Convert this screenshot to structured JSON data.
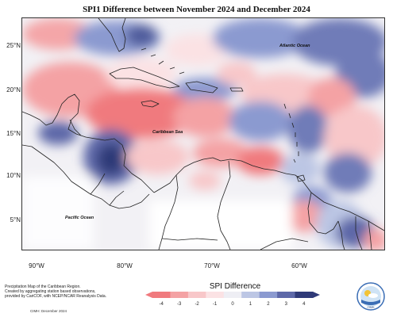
{
  "title": "SPI1 Difference between November 2024 and December 2024",
  "map": {
    "labels": {
      "atlantic": "Atlantic Ocean",
      "caribbean": "Caribbean Sea",
      "pacific": "Pacific Ocean"
    },
    "lat_ticks": [
      "25°N",
      "20°N",
      "15°N",
      "10°N",
      "5°N"
    ],
    "lon_ticks": [
      "90°W",
      "80°W",
      "70°W",
      "60°W"
    ]
  },
  "colorbar": {
    "title": "SPI Difference",
    "ticks": [
      "-4",
      "-3",
      "-2",
      "-1",
      "0",
      "1",
      "2",
      "3",
      "4"
    ],
    "colors": [
      "#f07a7e",
      "#f4a2a4",
      "#f8c7c9",
      "#fbe2e4",
      "#eeeef4",
      "#bcc6e4",
      "#8b9ad0",
      "#5d68a8",
      "#2f3a78"
    ]
  },
  "credits": {
    "line1": "Precipitation Map of the Caribbean Region.",
    "line2": "Created by aggregating station based observations,",
    "line3": "provided by CariCOF, with NCEP/NCAR Reanalysis Data.",
    "footer": "CIMH: December 2024"
  },
  "logo_text": "CIMH"
}
